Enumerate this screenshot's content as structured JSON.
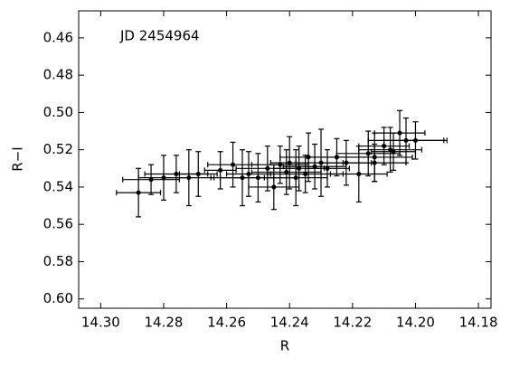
{
  "chart_data": {
    "type": "errorbar-scatter",
    "annotation": "JD 2454964",
    "x_label": "R",
    "y_label": "R−I",
    "xlim": [
      14.307,
      14.176
    ],
    "ylim": [
      0.605,
      0.4455
    ],
    "xticks": [
      {
        "value": 14.3,
        "label": "14.30"
      },
      14.28,
      14.26,
      14.24,
      14.22,
      {
        "value": 14.2,
        "label": "14.20"
      },
      14.18
    ],
    "yticks": [
      0.46,
      0.48,
      {
        "value": 0.5,
        "label": "0.50"
      },
      0.52,
      0.54,
      0.56,
      0.58,
      {
        "value": 0.6,
        "label": "0.60"
      }
    ],
    "color": "#000000",
    "series": [
      {
        "x": [
          14.288,
          14.284,
          14.28,
          14.276,
          14.272,
          14.269,
          14.262,
          14.258,
          14.255,
          14.253,
          14.25,
          14.247,
          14.245,
          14.243,
          14.241,
          14.24,
          14.238,
          14.237,
          14.235,
          14.234,
          14.232,
          14.23,
          14.228,
          14.225,
          14.222,
          14.218,
          14.215,
          14.213,
          14.21,
          14.208,
          14.207,
          14.205,
          14.203,
          14.2,
          14.213
        ],
        "values": [
          0.543,
          0.536,
          0.535,
          0.533,
          0.535,
          0.533,
          0.531,
          0.528,
          0.535,
          0.533,
          0.535,
          0.53,
          0.54,
          0.528,
          0.532,
          0.527,
          0.535,
          0.53,
          0.533,
          0.524,
          0.529,
          0.527,
          0.53,
          0.524,
          0.527,
          0.533,
          0.522,
          0.524,
          0.518,
          0.52,
          0.521,
          0.511,
          0.515,
          0.515,
          0.527
        ],
        "xerr": [
          0.007,
          0.009,
          0.008,
          0.01,
          0.008,
          0.006,
          0.005,
          0.008,
          0.01,
          0.007,
          0.012,
          0.01,
          0.008,
          0.009,
          0.011,
          0.006,
          0.01,
          0.008,
          0.012,
          0.009,
          0.01,
          0.008,
          0.007,
          0.01,
          0.008,
          0.009,
          0.01,
          0.012,
          0.008,
          0.01,
          0.007,
          0.008,
          0.012,
          0.01,
          0.01
        ],
        "yerr": [
          0.013,
          0.008,
          0.012,
          0.01,
          0.015,
          0.012,
          0.01,
          0.012,
          0.015,
          0.012,
          0.013,
          0.012,
          0.012,
          0.01,
          0.012,
          0.014,
          0.015,
          0.012,
          0.01,
          0.013,
          0.012,
          0.018,
          0.01,
          0.01,
          0.012,
          0.015,
          0.012,
          0.013,
          0.01,
          0.012,
          0.01,
          0.012,
          0.012,
          0.01,
          0.01
        ]
      }
    ]
  }
}
